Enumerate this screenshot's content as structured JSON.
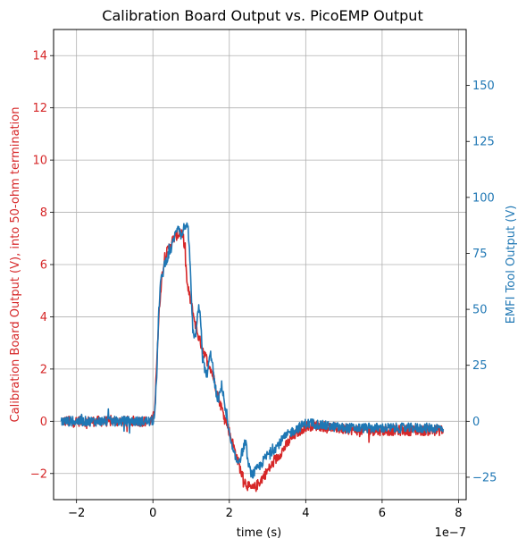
{
  "chart_data": {
    "type": "line",
    "title": "Calibration Board Output vs. PicoEMP Output",
    "xlabel": "time (s)",
    "x_offset_text": "1e−7",
    "x_scale": 1e-07,
    "ylabel_left": "Calibration Board Output (V), into 50-ohm termination",
    "ylabel_right": "EMFI Tool Output (V)",
    "xlim": [
      -2.6,
      8.2
    ],
    "ylim_left": [
      -3.0,
      15.0
    ],
    "ylim_right": [
      -35,
      175
    ],
    "xticks": [
      -2,
      0,
      2,
      4,
      6,
      8
    ],
    "xtick_labels": [
      "−2",
      "0",
      "2",
      "4",
      "6",
      "8"
    ],
    "yticks_left": [
      -2,
      0,
      2,
      4,
      6,
      8,
      10,
      12,
      14
    ],
    "ytick_labels_left": [
      "−2",
      "0",
      "2",
      "4",
      "6",
      "8",
      "10",
      "12",
      "14"
    ],
    "yticks_right": [
      -25,
      0,
      25,
      50,
      75,
      100,
      125,
      150
    ],
    "ytick_labels_right": [
      "−25",
      "0",
      "25",
      "50",
      "75",
      "100",
      "125",
      "150"
    ],
    "grid": true,
    "colors": {
      "left": "#d62728",
      "right": "#1f77b4"
    },
    "series": [
      {
        "axis": "left",
        "color": "#d62728",
        "x": [
          -2.4,
          -2.0,
          -1.5,
          -1.0,
          -0.5,
          -0.1,
          0.0,
          0.05,
          0.1,
          0.15,
          0.2,
          0.25,
          0.3,
          0.35,
          0.4,
          0.5,
          0.6,
          0.7,
          0.75,
          0.8,
          0.85,
          0.9,
          1.0,
          1.1,
          1.2,
          1.3,
          1.4,
          1.5,
          1.6,
          1.7,
          1.8,
          1.9,
          2.0,
          2.1,
          2.2,
          2.3,
          2.4,
          2.5,
          2.6,
          2.7,
          2.8,
          3.0,
          3.2,
          3.4,
          3.6,
          3.8,
          4.0,
          4.2,
          4.5,
          5.0,
          5.5,
          6.0,
          6.5,
          7.0,
          7.5,
          7.6
        ],
        "y": [
          0.0,
          0.0,
          0.0,
          0.0,
          0.0,
          0.0,
          0.05,
          0.6,
          2.3,
          3.8,
          5.0,
          5.7,
          6.1,
          6.4,
          6.6,
          6.9,
          7.1,
          7.2,
          7.25,
          7.0,
          6.2,
          5.2,
          4.5,
          3.8,
          3.2,
          2.8,
          2.4,
          2.1,
          1.6,
          1.0,
          0.5,
          0.1,
          -0.4,
          -0.9,
          -1.4,
          -1.9,
          -2.3,
          -2.5,
          -2.6,
          -2.5,
          -2.3,
          -1.9,
          -1.5,
          -1.1,
          -0.7,
          -0.4,
          -0.2,
          -0.15,
          -0.2,
          -0.3,
          -0.35,
          -0.35,
          -0.35,
          -0.35,
          -0.35,
          -0.35
        ],
        "noise": 0.2
      },
      {
        "axis": "right",
        "color": "#1f77b4",
        "x": [
          -2.4,
          -2.0,
          -1.5,
          -1.0,
          -0.5,
          0.0,
          0.05,
          0.1,
          0.15,
          0.2,
          0.25,
          0.3,
          0.35,
          0.4,
          0.5,
          0.55,
          0.6,
          0.65,
          0.7,
          0.75,
          0.8,
          0.85,
          0.9,
          0.95,
          1.0,
          1.05,
          1.1,
          1.15,
          1.2,
          1.25,
          1.3,
          1.4,
          1.45,
          1.5,
          1.55,
          1.6,
          1.7,
          1.75,
          1.8,
          1.85,
          1.9,
          2.0,
          2.1,
          2.2,
          2.3,
          2.4,
          2.45,
          2.5,
          2.6,
          2.7,
          2.8,
          3.0,
          3.2,
          3.4,
          3.6,
          3.8,
          4.0,
          4.2,
          4.5,
          5.0,
          5.5,
          6.0,
          6.5,
          7.0,
          7.5,
          7.6
        ],
        "y": [
          0,
          0,
          0,
          0,
          0,
          0,
          5,
          20,
          48,
          62,
          65,
          70,
          72,
          74,
          78,
          82,
          84,
          88,
          86,
          82,
          86,
          88,
          86,
          80,
          58,
          38,
          36,
          44,
          50,
          46,
          28,
          20,
          24,
          30,
          28,
          18,
          9,
          12,
          16,
          12,
          4,
          -6,
          -14,
          -18,
          -16,
          -10,
          -12,
          -20,
          -24,
          -22,
          -20,
          -15,
          -12,
          -8,
          -5,
          -3,
          -1,
          -1,
          -2,
          -3,
          -3,
          -3,
          -3,
          -3,
          -3,
          -3
        ],
        "noise": 2.2
      }
    ]
  }
}
